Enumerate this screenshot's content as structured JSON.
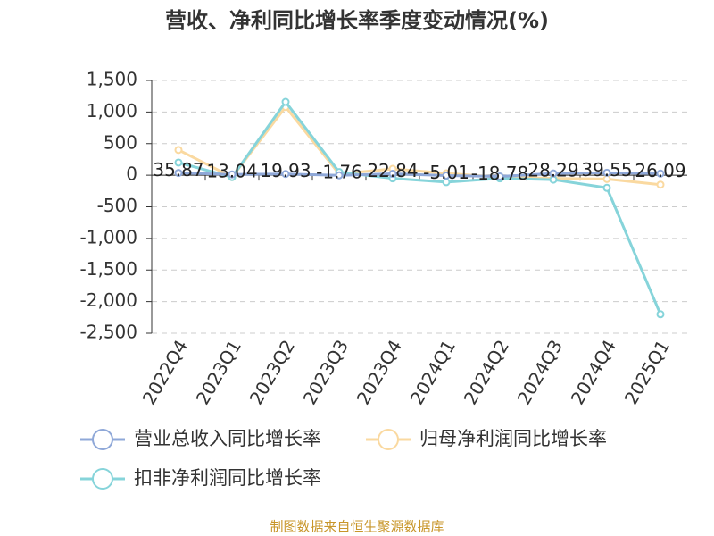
{
  "chart_data": {
    "type": "line",
    "title": "营收、净利同比增长率季度变动情况(%)",
    "categories": [
      "2022Q4",
      "2023Q1",
      "2023Q2",
      "2023Q3",
      "2023Q4",
      "2024Q1",
      "2024Q2",
      "2024Q3",
      "2024Q4",
      "2025Q1"
    ],
    "series": [
      {
        "name": "营业总收入同比增长率",
        "color": "#8fa8d8",
        "values": [
          35.87,
          13.04,
          19.93,
          -1.76,
          22.84,
          -5.01,
          -18.78,
          28.29,
          39.55,
          26.09
        ]
      },
      {
        "name": "归母净利润同比增长率",
        "color": "#fad9a0",
        "values": [
          400,
          -30,
          1080,
          20,
          100,
          30,
          -30,
          -50,
          -60,
          -150
        ]
      },
      {
        "name": "扣非净利润同比增长率",
        "color": "#86d4da",
        "values": [
          200,
          -30,
          1160,
          50,
          -50,
          -110,
          -50,
          -70,
          -200,
          -2200
        ]
      }
    ],
    "ylim": [
      -2500,
      1500
    ],
    "yticks": [
      {
        "value": 1500,
        "label": "1,500"
      },
      {
        "value": 1000,
        "label": "1,000"
      },
      500,
      0,
      -500,
      {
        "value": -1000,
        "label": "-1,000"
      },
      {
        "value": -1500,
        "label": "-1,500"
      },
      {
        "value": -2000,
        "label": "-2,000"
      },
      {
        "value": -2500,
        "label": "-2,500"
      }
    ],
    "grid": true,
    "source": "制图数据来自恒生聚源数据库"
  }
}
